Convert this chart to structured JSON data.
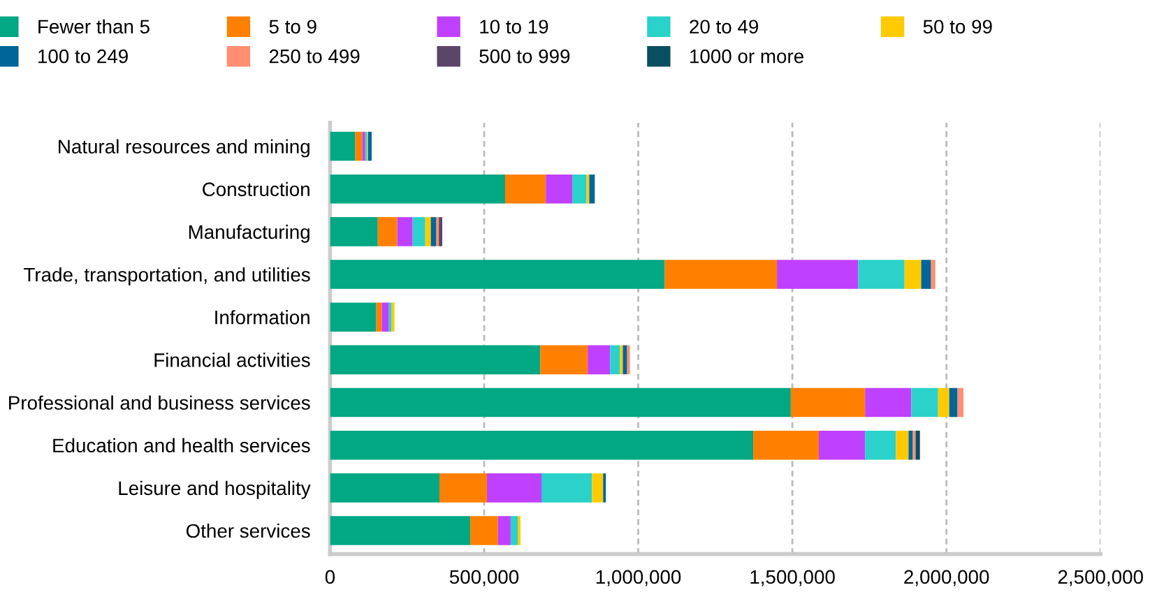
{
  "chart_data": {
    "type": "bar",
    "orientation": "horizontal",
    "stacked": true,
    "legend": "top",
    "grid": "x",
    "categories": [
      "Natural resources and mining",
      "Construction",
      "Manufacturing",
      "Trade, transportation, and utilities",
      "Information",
      "Financial activities",
      "Professional and business services",
      "Education and health services",
      "Leisure and hospitality",
      "Other services"
    ],
    "series": [
      {
        "name": "Fewer than 5",
        "color": "#02a783",
        "values": [
          82000,
          568000,
          155000,
          1086000,
          150000,
          682000,
          1495000,
          1373000,
          355000,
          455000
        ]
      },
      {
        "name": "5 to 9",
        "color": "#ff8000",
        "values": [
          23000,
          132000,
          63000,
          364000,
          18000,
          154000,
          241000,
          213000,
          154000,
          90000
        ]
      },
      {
        "name": "10 to 19",
        "color": "#c040ff",
        "values": [
          9000,
          86000,
          50000,
          264000,
          23000,
          73000,
          150000,
          150000,
          177000,
          41000
        ]
      },
      {
        "name": "20 to 49",
        "color": "#2ad2c9",
        "values": [
          6000,
          46000,
          41000,
          150000,
          9000,
          32000,
          87000,
          100000,
          164000,
          23000
        ]
      },
      {
        "name": "50 to 99",
        "color": "#ffcb00",
        "values": [
          3000,
          9000,
          18000,
          54000,
          9000,
          9000,
          36000,
          41000,
          36000,
          9000
        ]
      },
      {
        "name": "100 to 249",
        "color": "#006699",
        "values": [
          12000,
          18000,
          18000,
          32000,
          0,
          14000,
          27000,
          14000,
          9000,
          0
        ]
      },
      {
        "name": "250 to 499",
        "color": "#ff8f70",
        "values": [
          0,
          0,
          8000,
          14000,
          0,
          9000,
          19000,
          9000,
          0,
          0
        ]
      },
      {
        "name": "500 to 999",
        "color": "#5c4668",
        "values": [
          0,
          0,
          11000,
          0,
          0,
          0,
          0,
          0,
          0,
          0
        ]
      },
      {
        "name": "1000 or more",
        "color": "#0a4f5f",
        "values": [
          0,
          0,
          0,
          0,
          0,
          0,
          0,
          14000,
          0,
          0
        ]
      }
    ],
    "xlim": [
      0,
      2500000
    ],
    "xticks": [
      {
        "value": 0,
        "label": "0"
      },
      {
        "value": 500000,
        "label": "500,000"
      },
      {
        "value": 1000000,
        "label": "1,000,000"
      },
      {
        "value": 1500000,
        "label": "1,500,000"
      },
      {
        "value": 2000000,
        "label": "2,000,000"
      },
      {
        "value": 2500000,
        "label": "2,500,000"
      }
    ]
  }
}
